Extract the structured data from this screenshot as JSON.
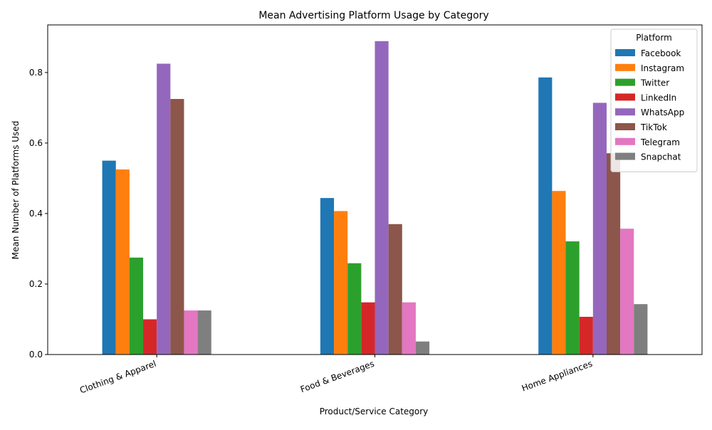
{
  "chart_data": {
    "type": "bar",
    "title": "Mean Advertising Platform Usage by Category",
    "xlabel": "Product/Service Category",
    "ylabel": "Mean Number of Platforms Used",
    "categories": [
      "Clothing & Apparel",
      "Food & Beverages",
      "Home Appliances"
    ],
    "ylim": [
      0,
      0.935
    ],
    "yticks": [
      0.0,
      0.2,
      0.4,
      0.6,
      0.8
    ],
    "ytick_labels": [
      "0.0",
      "0.2",
      "0.4",
      "0.6",
      "0.8"
    ],
    "grid": false,
    "legend": {
      "title": "Platform",
      "placement": "top-right"
    },
    "series": [
      {
        "name": "Facebook",
        "color": "#1f77b4",
        "values": [
          0.55,
          0.444,
          0.786
        ]
      },
      {
        "name": "Instagram",
        "color": "#ff7f0e",
        "values": [
          0.525,
          0.407,
          0.464
        ]
      },
      {
        "name": "Twitter",
        "color": "#2ca02c",
        "values": [
          0.275,
          0.259,
          0.321
        ]
      },
      {
        "name": "LinkedIn",
        "color": "#d62728",
        "values": [
          0.1,
          0.148,
          0.107
        ]
      },
      {
        "name": "WhatsApp",
        "color": "#9467bd",
        "values": [
          0.825,
          0.889,
          0.714
        ]
      },
      {
        "name": "TikTok",
        "color": "#8c564b",
        "values": [
          0.725,
          0.37,
          0.571
        ]
      },
      {
        "name": "Telegram",
        "color": "#e377c2",
        "values": [
          0.125,
          0.148,
          0.357
        ]
      },
      {
        "name": "Snapchat",
        "color": "#7f7f7f",
        "values": [
          0.125,
          0.037,
          0.143
        ]
      }
    ]
  }
}
